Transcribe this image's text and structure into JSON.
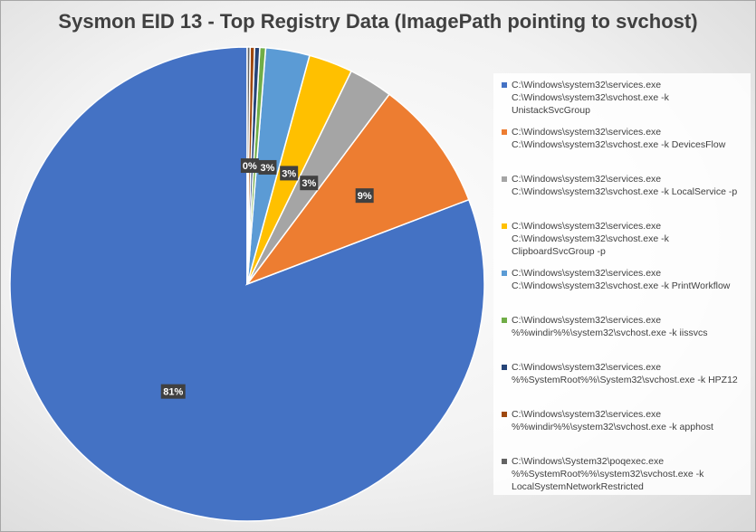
{
  "chart_data": {
    "type": "pie",
    "title": "Sysmon EID 13 - Top Registry Data (ImagePath pointing to svchost)",
    "legend_position": "right",
    "slices": [
      {
        "lines": [
          "C:\\Windows\\system32\\services.exe",
          "C:\\Windows\\system32\\svchost.exe -k",
          "UnistackSvcGroup"
        ],
        "value": 81,
        "label": "81%",
        "color": "#4472C4"
      },
      {
        "lines": [
          "C:\\Windows\\system32\\services.exe",
          "C:\\Windows\\system32\\svchost.exe -k DevicesFlow"
        ],
        "value": 9,
        "label": "9%",
        "color": "#ED7D31"
      },
      {
        "lines": [
          "C:\\Windows\\system32\\services.exe",
          "C:\\Windows\\system32\\svchost.exe -k LocalService -p"
        ],
        "value": 3,
        "label": "3%",
        "color": "#A5A5A5"
      },
      {
        "lines": [
          "C:\\Windows\\system32\\services.exe",
          "C:\\Windows\\system32\\svchost.exe -k",
          "ClipboardSvcGroup -p"
        ],
        "value": 3,
        "label": "3%",
        "color": "#FFC000"
      },
      {
        "lines": [
          "C:\\Windows\\system32\\services.exe",
          "C:\\Windows\\system32\\svchost.exe -k PrintWorkflow"
        ],
        "value": 3,
        "label": "3%",
        "color": "#5B9BD5"
      },
      {
        "lines": [
          "C:\\Windows\\system32\\services.exe",
          "%%windir%%\\system32\\svchost.exe -k iissvcs"
        ],
        "value": 0.4,
        "label": "",
        "color": "#70AD47"
      },
      {
        "lines": [
          "C:\\Windows\\system32\\services.exe",
          "%%SystemRoot%%\\System32\\svchost.exe -k HPZ12"
        ],
        "value": 0.35,
        "label": "",
        "color": "#264478"
      },
      {
        "lines": [
          "C:\\Windows\\system32\\services.exe",
          "%%windir%%\\system32\\svchost.exe -k apphost"
        ],
        "value": 0.3,
        "label": "0%",
        "color": "#9E480E"
      },
      {
        "lines": [
          "C:\\Windows\\System32\\poqexec.exe",
          "%%SystemRoot%%\\system32\\svchost.exe -k",
          "LocalSystemNetworkRestricted"
        ],
        "value": 0.2,
        "label": "",
        "color": "#636363"
      }
    ]
  }
}
